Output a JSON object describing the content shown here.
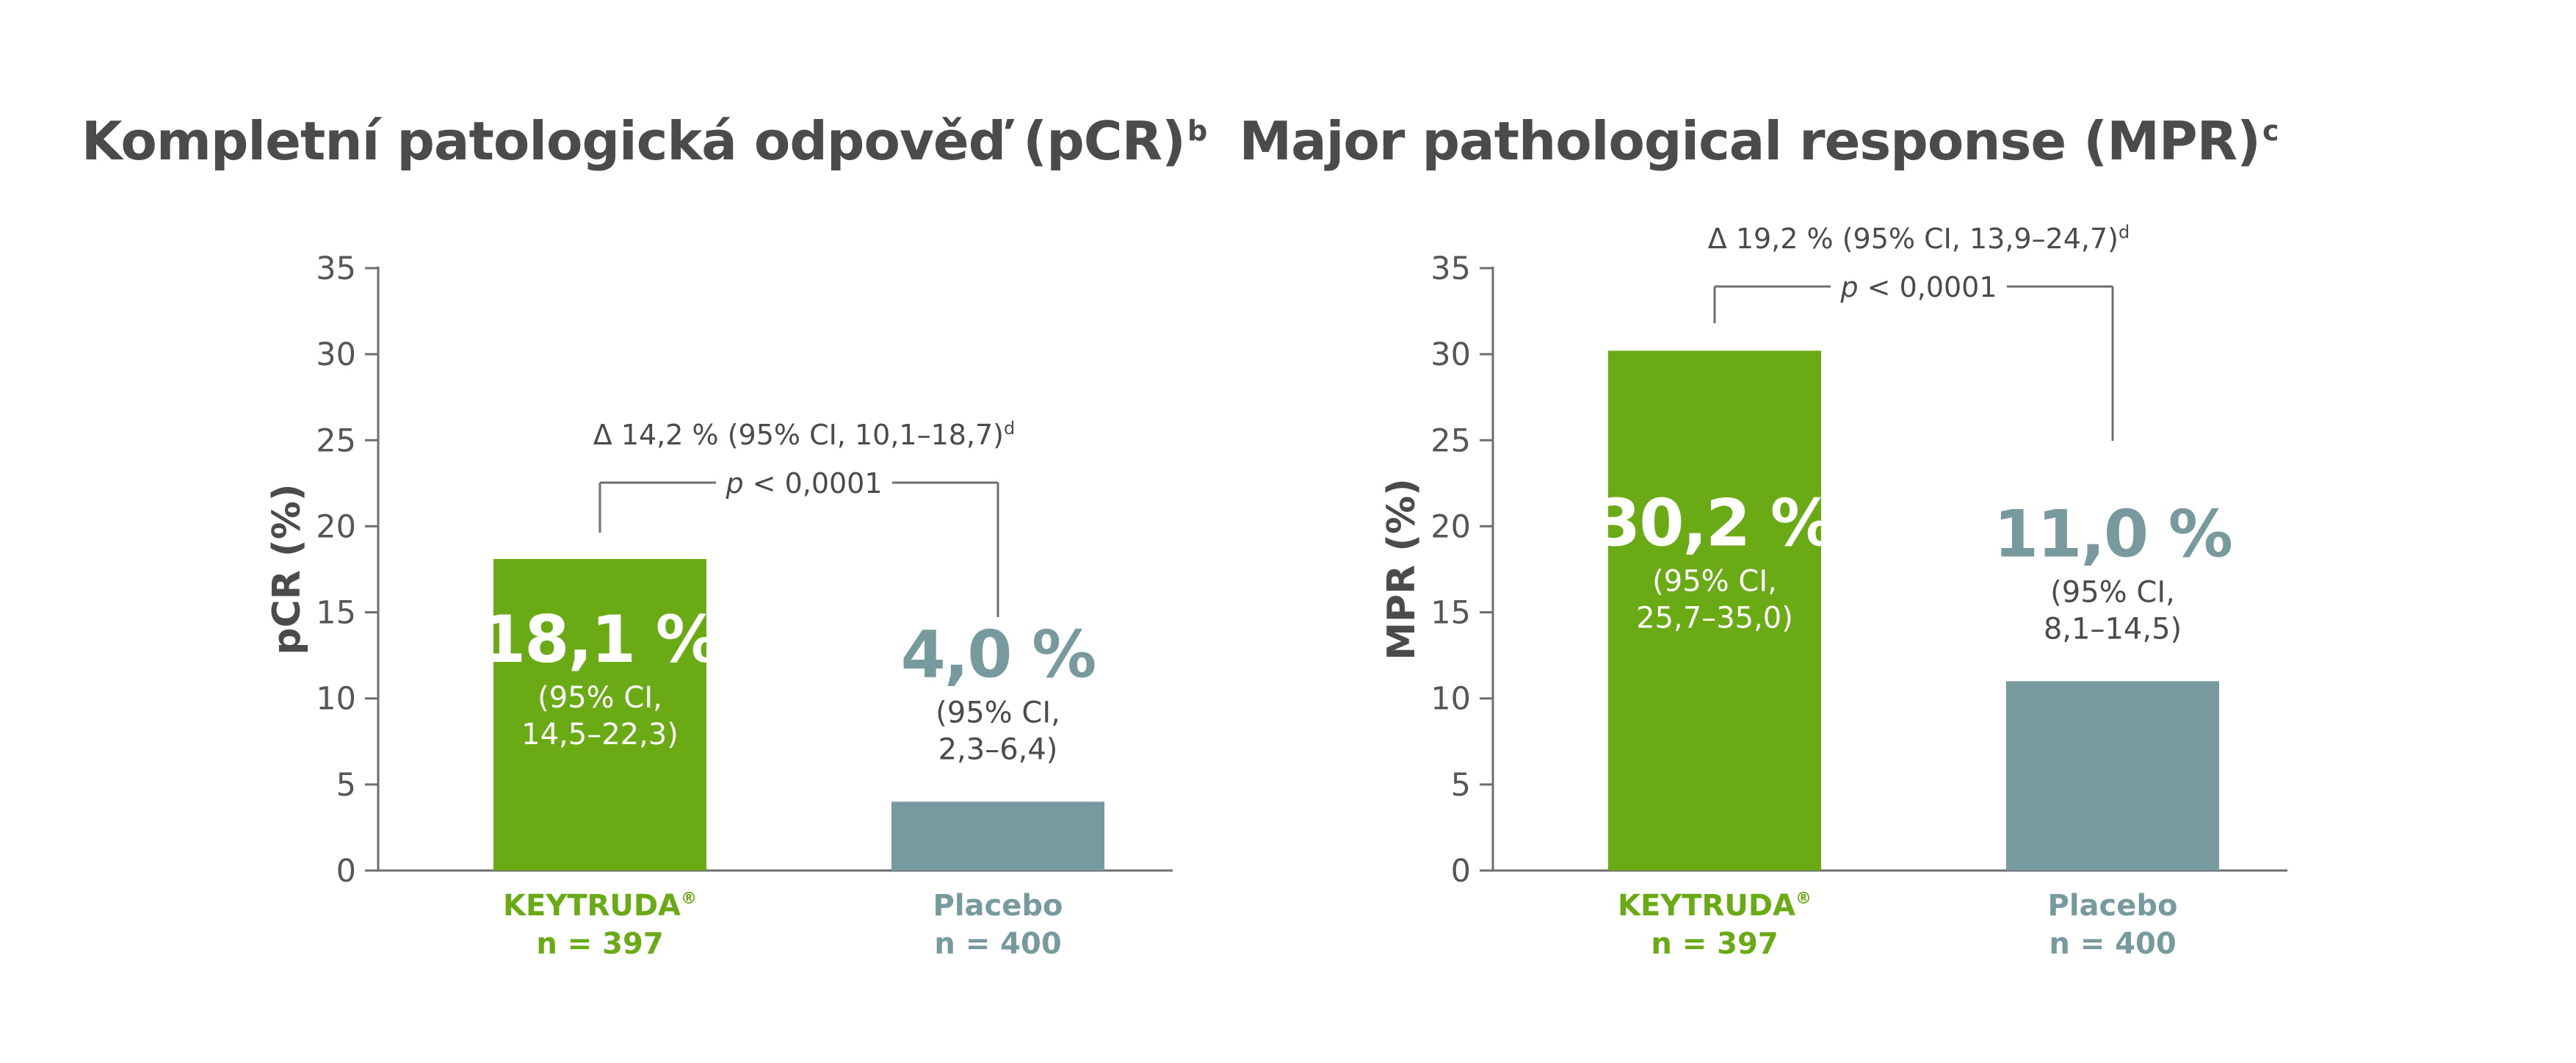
{
  "chart_data": [
    {
      "type": "bar",
      "title": "Kompletní patologická odpověď (pCR)",
      "title_sup": "b",
      "ylabel": "pCR (%)",
      "ylim": [
        0,
        35
      ],
      "yticks": [
        "0",
        "5",
        "10",
        "15",
        "20",
        "25",
        "30",
        "35"
      ],
      "categories": [
        "KEYTRUDA®",
        "Placebo"
      ],
      "category_n": [
        "n = 397",
        "n = 400"
      ],
      "values": [
        18.1,
        4.0
      ],
      "value_labels": [
        "18,1 %",
        "4,0 %"
      ],
      "ci_line1": [
        "(95% CI,",
        "(95% CI,"
      ],
      "ci_line2": [
        "14,5–22,3)",
        "2,3–6,4)"
      ],
      "delta": "Δ 14,2 % (95% CI, 10,1–18,7)",
      "delta_sup": "d",
      "p_label": "p",
      "p_value": "< 0,0001",
      "colors": [
        "#6aaa14",
        "#779a9e"
      ]
    },
    {
      "type": "bar",
      "title": "Major pathological response (MPR)",
      "title_sup": "c",
      "ylabel": "MPR (%)",
      "ylim": [
        0,
        35
      ],
      "yticks": [
        "0",
        "5",
        "10",
        "15",
        "20",
        "25",
        "30",
        "35"
      ],
      "categories": [
        "KEYTRUDA®",
        "Placebo"
      ],
      "category_n": [
        "n = 397",
        "n = 400"
      ],
      "values": [
        30.2,
        11.0
      ],
      "value_labels": [
        "30,2 %",
        "11,0 %"
      ],
      "ci_line1": [
        "(95% CI,",
        "(95% CI,"
      ],
      "ci_line2": [
        "25,7–35,0)",
        "8,1–14,5)"
      ],
      "delta": "Δ 19,2 % (95% CI, 13,9–24,7)",
      "delta_sup": "d",
      "p_label": "p",
      "p_value": "< 0,0001",
      "colors": [
        "#6aaa14",
        "#779a9e"
      ]
    }
  ]
}
